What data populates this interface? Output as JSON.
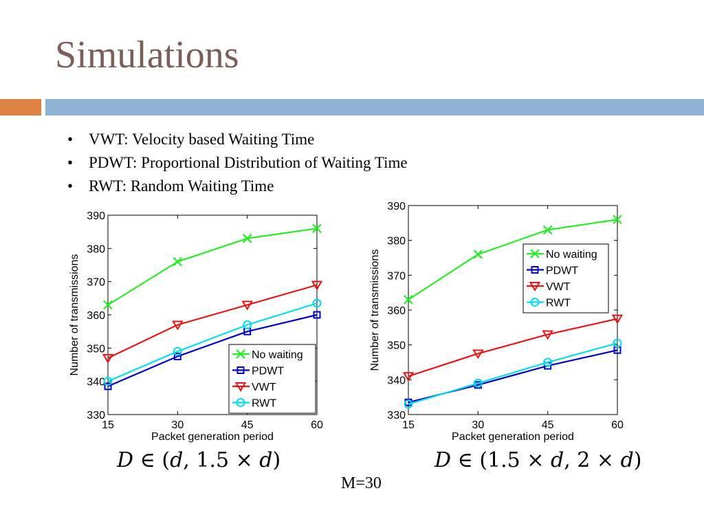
{
  "slide": {
    "title": "Simulations",
    "accent_colors": {
      "orange": "#de8344",
      "blue": "#8eb3d2",
      "title": "#7b5e57"
    },
    "bullets": [
      "VWT: Velocity based Waiting Time",
      "PDWT: Proportional Distribution of Waiting Time",
      "RWT: Random Waiting Time"
    ],
    "bullet_symbol": "•",
    "left_caption": {
      "D": "D",
      "rest": "∈ (",
      "d": "d",
      "mid": ", 1.5 × ",
      "d2": "d",
      "end": ")"
    },
    "right_caption": {
      "D": "D",
      "rest": "∈ (1.5 × ",
      "d": "d",
      "mid": ", 2 × ",
      "d2": "d",
      "end": ")"
    },
    "footer": "M=30"
  },
  "chart_data": [
    {
      "type": "line",
      "xlabel": "Packet generation period",
      "ylabel": "Number of transmissions",
      "x": [
        15,
        30,
        45,
        60
      ],
      "xlim": [
        15,
        60
      ],
      "ylim": [
        330,
        390
      ],
      "xticks": [
        "15",
        "30",
        "45",
        "60"
      ],
      "yticks": [
        "330",
        "340",
        "350",
        "360",
        "370",
        "380",
        "390"
      ],
      "grid": false,
      "legend_position": "bottom-right",
      "series": [
        {
          "name": "No waiting",
          "color": "#22ee22",
          "marker": "x",
          "values": [
            363,
            376,
            383,
            386
          ]
        },
        {
          "name": "PDWT",
          "color": "#0000cc",
          "marker": "square",
          "values": [
            338.5,
            347.5,
            355,
            360
          ]
        },
        {
          "name": "VWT",
          "color": "#ee1111",
          "marker": "triangle-down",
          "values": [
            347,
            357,
            363,
            369
          ]
        },
        {
          "name": "RWT",
          "color": "#00ddee",
          "marker": "circle",
          "values": [
            340,
            349,
            357,
            363.5
          ]
        }
      ]
    },
    {
      "type": "line",
      "xlabel": "Packet generation period",
      "ylabel": "Number of transmissions",
      "x": [
        15,
        30,
        45,
        60
      ],
      "xlim": [
        15,
        60
      ],
      "ylim": [
        330,
        390
      ],
      "xticks": [
        "15",
        "30",
        "45",
        "60"
      ],
      "yticks": [
        "330",
        "340",
        "350",
        "360",
        "370",
        "380",
        "390"
      ],
      "grid": false,
      "legend_position": "top-right",
      "series": [
        {
          "name": "No waiting",
          "color": "#22ee22",
          "marker": "x",
          "values": [
            363,
            376,
            383,
            386
          ]
        },
        {
          "name": "PDWT",
          "color": "#0000cc",
          "marker": "square",
          "values": [
            333.5,
            338.5,
            344,
            348.5
          ]
        },
        {
          "name": "VWT",
          "color": "#ee1111",
          "marker": "triangle-down",
          "values": [
            341,
            347.5,
            353,
            357.5
          ]
        },
        {
          "name": "RWT",
          "color": "#00ddee",
          "marker": "circle",
          "values": [
            333,
            339,
            345,
            350.5
          ]
        }
      ]
    }
  ]
}
